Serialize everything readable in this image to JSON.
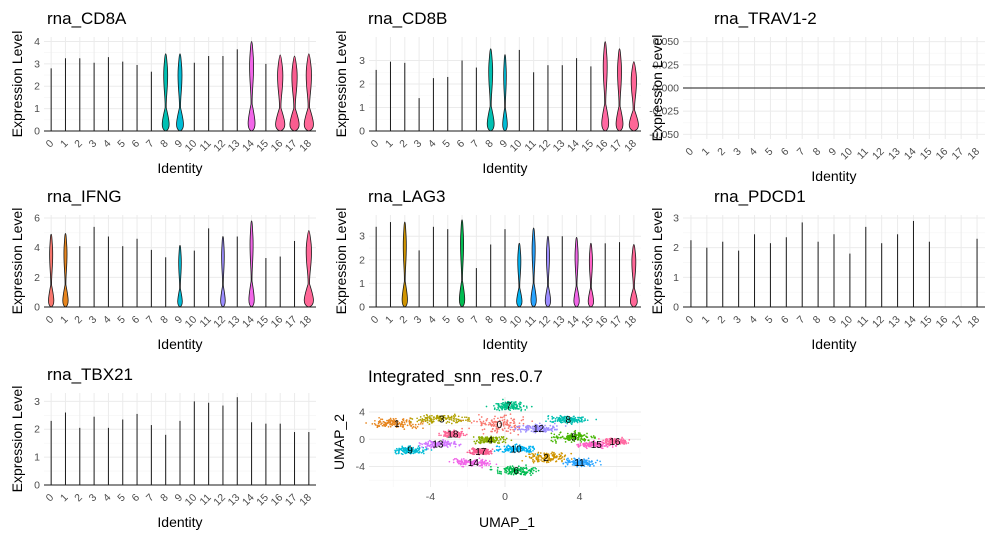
{
  "chart_data": [
    {
      "type": "violin",
      "title": "rna_CD8A",
      "xlabel": "Identity",
      "ylabel": "Expression Level",
      "categories": [
        "0",
        "1",
        "2",
        "3",
        "4",
        "5",
        "6",
        "7",
        "8",
        "9",
        "10",
        "11",
        "12",
        "13",
        "14",
        "15",
        "16",
        "17",
        "18"
      ],
      "ylim": [
        0,
        4.2
      ],
      "yticks": [
        0,
        1,
        2,
        3,
        4
      ],
      "max_values": [
        2.8,
        3.25,
        3.25,
        3.05,
        3.3,
        3.1,
        2.95,
        2.65,
        3.45,
        3.45,
        3.05,
        3.35,
        3.35,
        3.65,
        4.0,
        3.0,
        3.4,
        3.35,
        3.45
      ],
      "violin_width": [
        0,
        0,
        0,
        0,
        0,
        0,
        0,
        0,
        0.45,
        0.45,
        0,
        0,
        0,
        0,
        0.45,
        0,
        0.6,
        0.6,
        0.6
      ]
    },
    {
      "type": "violin",
      "title": "rna_CD8B",
      "xlabel": "Identity",
      "ylabel": "Expression Level",
      "categories": [
        "0",
        "1",
        "2",
        "3",
        "4",
        "5",
        "6",
        "7",
        "8",
        "9",
        "10",
        "11",
        "12",
        "13",
        "14",
        "15",
        "16",
        "17",
        "18"
      ],
      "ylim": [
        0,
        4.0
      ],
      "yticks": [
        0,
        1,
        2,
        3
      ],
      "max_values": [
        2.6,
        2.95,
        2.9,
        1.4,
        2.25,
        2.3,
        3.0,
        2.7,
        3.5,
        3.25,
        3.45,
        2.5,
        2.8,
        2.8,
        3.1,
        2.75,
        3.8,
        3.5,
        2.95
      ],
      "violin_width": [
        0,
        0,
        0,
        0,
        0,
        0,
        0,
        0,
        0.45,
        0.3,
        0,
        0,
        0,
        0,
        0,
        0,
        0.45,
        0.45,
        0.6
      ]
    },
    {
      "type": "violin",
      "title": "rna_TRAV1-2",
      "xlabel": "Identity",
      "ylabel": "Expression Level",
      "categories": [
        "0",
        "1",
        "2",
        "3",
        "4",
        "5",
        "6",
        "7",
        "8",
        "9",
        "10",
        "11",
        "12",
        "13",
        "14",
        "15",
        "16",
        "17",
        "18"
      ],
      "ylim": [
        -0.055,
        0.055
      ],
      "yticks": [
        -0.05,
        -0.025,
        0.0,
        0.025,
        0.05
      ],
      "ytick_labels": [
        "-0.050",
        "-0.025",
        "0.000",
        "0.025",
        "0.050"
      ],
      "max_values": [
        0,
        0,
        0,
        0,
        0,
        0,
        0,
        0,
        0,
        0,
        0,
        0,
        0,
        0,
        0,
        0,
        0,
        0,
        0
      ],
      "violin_width": [
        0,
        0,
        0,
        0,
        0,
        0,
        0,
        0,
        0,
        0,
        0,
        0,
        0,
        0,
        0,
        0,
        0,
        0,
        0
      ]
    },
    {
      "type": "violin",
      "title": "rna_IFNG",
      "xlabel": "Identity",
      "ylabel": "Expression Level",
      "categories": [
        "0",
        "1",
        "2",
        "3",
        "4",
        "5",
        "6",
        "7",
        "8",
        "9",
        "10",
        "11",
        "12",
        "13",
        "14",
        "15",
        "16",
        "17",
        "18"
      ],
      "ylim": [
        0,
        6.2
      ],
      "yticks": [
        0,
        2,
        4,
        6
      ],
      "max_values": [
        4.9,
        4.95,
        4.1,
        5.4,
        4.75,
        4.1,
        4.6,
        3.85,
        3.35,
        4.15,
        3.8,
        5.3,
        4.75,
        4.75,
        5.8,
        3.3,
        3.4,
        4.45,
        5.15
      ],
      "violin_width": [
        0.35,
        0.35,
        0,
        0,
        0,
        0,
        0,
        0,
        0,
        0.3,
        0,
        0,
        0.3,
        0,
        0.35,
        0,
        0,
        0,
        0.6
      ]
    },
    {
      "type": "violin",
      "title": "rna_LAG3",
      "xlabel": "Identity",
      "ylabel": "Expression Level",
      "categories": [
        "0",
        "1",
        "2",
        "3",
        "4",
        "5",
        "6",
        "7",
        "8",
        "9",
        "10",
        "11",
        "12",
        "13",
        "14",
        "15",
        "16",
        "17",
        "18"
      ],
      "ylim": [
        0,
        3.9
      ],
      "yticks": [
        0,
        1,
        2,
        3
      ],
      "max_values": [
        3.4,
        3.6,
        3.6,
        2.4,
        3.4,
        3.3,
        3.7,
        1.65,
        2.65,
        3.3,
        2.7,
        3.35,
        3.0,
        3.0,
        2.95,
        2.7,
        2.7,
        2.75,
        2.65
      ],
      "violin_width": [
        0,
        0,
        0.35,
        0,
        0,
        0,
        0.35,
        0,
        0,
        0,
        0.35,
        0.35,
        0.35,
        0,
        0.35,
        0.35,
        0,
        0,
        0.45
      ]
    },
    {
      "type": "violin",
      "title": "rna_PDCD1",
      "xlabel": "Identity",
      "ylabel": "Expression Level",
      "categories": [
        "0",
        "1",
        "2",
        "3",
        "4",
        "5",
        "6",
        "7",
        "8",
        "9",
        "10",
        "11",
        "12",
        "13",
        "14",
        "15",
        "16",
        "17",
        "18"
      ],
      "ylim": [
        0,
        3.1
      ],
      "yticks": [
        0,
        1,
        2,
        3
      ],
      "max_values": [
        2.25,
        2.0,
        2.2,
        1.9,
        2.45,
        2.15,
        2.35,
        2.85,
        2.2,
        2.45,
        1.8,
        2.7,
        2.15,
        2.45,
        2.9,
        2.2,
        0,
        0,
        2.3
      ],
      "violin_width": [
        0,
        0,
        0,
        0,
        0,
        0,
        0,
        0,
        0,
        0,
        0,
        0,
        0,
        0,
        0,
        0,
        0,
        0,
        0
      ]
    },
    {
      "type": "violin",
      "title": "rna_TBX21",
      "xlabel": "Identity",
      "ylabel": "Expression Level",
      "categories": [
        "0",
        "1",
        "2",
        "3",
        "4",
        "5",
        "6",
        "7",
        "8",
        "9",
        "10",
        "11",
        "12",
        "13",
        "14",
        "15",
        "16",
        "17",
        "18"
      ],
      "ylim": [
        0,
        3.3
      ],
      "yticks": [
        0,
        1,
        2,
        3
      ],
      "max_values": [
        2.3,
        2.6,
        2.05,
        2.45,
        2.05,
        2.35,
        2.55,
        2.15,
        1.8,
        2.3,
        3.0,
        2.95,
        2.85,
        3.15,
        2.25,
        2.2,
        2.2,
        1.9,
        1.9
      ],
      "violin_width": [
        0,
        0,
        0,
        0,
        0,
        0,
        0,
        0,
        0,
        0,
        0,
        0,
        0,
        0,
        0,
        0,
        0,
        0,
        0
      ]
    },
    {
      "type": "scatter",
      "title": "Integrated_snn_res.0.7",
      "xlabel": "UMAP_1",
      "ylabel": "UMAP_2",
      "xlim": [
        -7.3,
        7.3
      ],
      "ylim": [
        -7.0,
        6.2
      ],
      "xticks": [
        -4,
        0,
        4
      ],
      "yticks": [
        -4,
        0,
        4
      ],
      "xtick_labels": [
        "-4",
        "0",
        "4"
      ],
      "ytick_labels": [
        "-4",
        "0",
        "4"
      ],
      "clusters": [
        {
          "name": "0",
          "center": [
            -0.3,
            2.2
          ],
          "spread": [
            1.4,
            1.1
          ]
        },
        {
          "name": "1",
          "center": [
            -5.8,
            2.3
          ],
          "spread": [
            1.2,
            0.6
          ]
        },
        {
          "name": "2",
          "center": [
            2.2,
            -2.7
          ],
          "spread": [
            1.0,
            0.7
          ]
        },
        {
          "name": "3",
          "center": [
            -3.4,
            3.0
          ],
          "spread": [
            1.2,
            0.6
          ]
        },
        {
          "name": "4",
          "center": [
            -0.8,
            -0.1
          ],
          "spread": [
            0.8,
            0.5
          ]
        },
        {
          "name": "5",
          "center": [
            3.7,
            0.3
          ],
          "spread": [
            1.0,
            0.6
          ]
        },
        {
          "name": "6",
          "center": [
            0.6,
            -4.6
          ],
          "spread": [
            1.0,
            0.6
          ]
        },
        {
          "name": "7",
          "center": [
            0.2,
            4.9
          ],
          "spread": [
            0.8,
            0.6
          ]
        },
        {
          "name": "8",
          "center": [
            3.4,
            2.9
          ],
          "spread": [
            1.0,
            0.5
          ]
        },
        {
          "name": "9",
          "center": [
            -5.1,
            -1.6
          ],
          "spread": [
            0.8,
            0.5
          ]
        },
        {
          "name": "10",
          "center": [
            0.6,
            -1.4
          ],
          "spread": [
            0.9,
            0.5
          ]
        },
        {
          "name": "11",
          "center": [
            4.0,
            -3.4
          ],
          "spread": [
            0.7,
            0.5
          ]
        },
        {
          "name": "12",
          "center": [
            1.8,
            1.6
          ],
          "spread": [
            1.0,
            0.5
          ]
        },
        {
          "name": "13",
          "center": [
            -3.6,
            -0.7
          ],
          "spread": [
            0.9,
            0.5
          ]
        },
        {
          "name": "14",
          "center": [
            -1.7,
            -3.4
          ],
          "spread": [
            1.0,
            0.5
          ]
        },
        {
          "name": "15",
          "center": [
            4.9,
            -0.8
          ],
          "spread": [
            0.8,
            0.4
          ]
        },
        {
          "name": "16",
          "center": [
            5.9,
            -0.3
          ],
          "spread": [
            0.6,
            0.4
          ]
        },
        {
          "name": "17",
          "center": [
            -1.3,
            -1.8
          ],
          "spread": [
            0.5,
            0.4
          ]
        },
        {
          "name": "18",
          "center": [
            -2.8,
            0.8
          ],
          "spread": [
            0.5,
            0.4
          ]
        }
      ]
    }
  ],
  "palette": [
    "#F8766D",
    "#E7851E",
    "#D09400",
    "#B2A100",
    "#89AC00",
    "#45B500",
    "#00BC51",
    "#00C087",
    "#00C0B2",
    "#00BCD6",
    "#00B3F2",
    "#29A3FF",
    "#9C8DFF",
    "#D277FF",
    "#F166E8",
    "#FF61C7",
    "#FF68A1",
    "#F95C8F",
    "#FF6797"
  ]
}
